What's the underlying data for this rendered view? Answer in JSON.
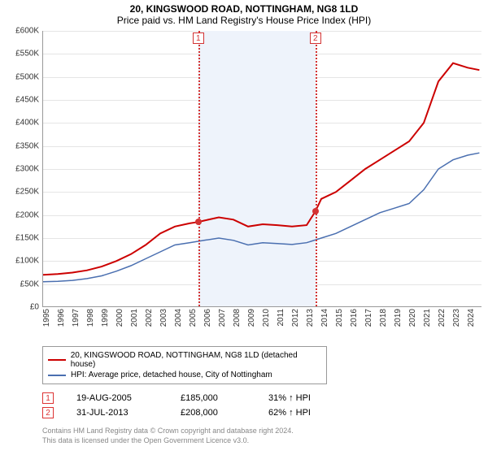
{
  "title": "20, KINGSWOOD ROAD, NOTTINGHAM, NG8 1LD",
  "subtitle": "Price paid vs. HM Land Registry's House Price Index (HPI)",
  "chart": {
    "type": "line",
    "background_color": "#ffffff",
    "grid_color": "#e5e5e5",
    "axis_color": "#999999",
    "ylim": [
      0,
      600000
    ],
    "ytick_step": 50000,
    "y_ticks": [
      "£0",
      "£50K",
      "£100K",
      "£150K",
      "£200K",
      "£250K",
      "£300K",
      "£350K",
      "£400K",
      "£450K",
      "£500K",
      "£550K",
      "£600K"
    ],
    "xlim": [
      1995,
      2025
    ],
    "x_ticks": [
      "1995",
      "1996",
      "1997",
      "1998",
      "1999",
      "2000",
      "2001",
      "2002",
      "2003",
      "2004",
      "2005",
      "2006",
      "2007",
      "2008",
      "2009",
      "2010",
      "2011",
      "2012",
      "2013",
      "2014",
      "2015",
      "2016",
      "2017",
      "2018",
      "2019",
      "2020",
      "2021",
      "2022",
      "2023",
      "2024"
    ],
    "band": {
      "start_year": 2005.6,
      "end_year": 2013.6,
      "color": "#eef3fb"
    },
    "markers": [
      {
        "label": "1",
        "year": 2005.6,
        "price": 185000
      },
      {
        "label": "2",
        "year": 2013.6,
        "price": 208000
      }
    ],
    "marker_line_color": "#d33333",
    "marker_box_border": "#d33333",
    "marker_dot_color": "#d33333",
    "series": [
      {
        "name": "property",
        "label": "20, KINGSWOOD ROAD, NOTTINGHAM, NG8 1LD (detached house)",
        "color": "#cc0000",
        "line_width": 2,
        "points": [
          [
            1995,
            70000
          ],
          [
            1996,
            72000
          ],
          [
            1997,
            75000
          ],
          [
            1998,
            80000
          ],
          [
            1999,
            88000
          ],
          [
            2000,
            100000
          ],
          [
            2001,
            115000
          ],
          [
            2002,
            135000
          ],
          [
            2003,
            160000
          ],
          [
            2004,
            175000
          ],
          [
            2005,
            182000
          ],
          [
            2005.6,
            185000
          ],
          [
            2006,
            188000
          ],
          [
            2007,
            195000
          ],
          [
            2008,
            190000
          ],
          [
            2009,
            175000
          ],
          [
            2010,
            180000
          ],
          [
            2011,
            178000
          ],
          [
            2012,
            175000
          ],
          [
            2013,
            178000
          ],
          [
            2013.6,
            208000
          ],
          [
            2014,
            235000
          ],
          [
            2015,
            250000
          ],
          [
            2016,
            275000
          ],
          [
            2017,
            300000
          ],
          [
            2018,
            320000
          ],
          [
            2019,
            340000
          ],
          [
            2020,
            360000
          ],
          [
            2021,
            400000
          ],
          [
            2022,
            490000
          ],
          [
            2023,
            530000
          ],
          [
            2024,
            520000
          ],
          [
            2024.8,
            515000
          ]
        ]
      },
      {
        "name": "hpi",
        "label": "HPI: Average price, detached house, City of Nottingham",
        "color": "#4a6fb0",
        "line_width": 1.5,
        "points": [
          [
            1995,
            55000
          ],
          [
            1996,
            56000
          ],
          [
            1997,
            58000
          ],
          [
            1998,
            62000
          ],
          [
            1999,
            68000
          ],
          [
            2000,
            78000
          ],
          [
            2001,
            90000
          ],
          [
            2002,
            105000
          ],
          [
            2003,
            120000
          ],
          [
            2004,
            135000
          ],
          [
            2005,
            140000
          ],
          [
            2006,
            145000
          ],
          [
            2007,
            150000
          ],
          [
            2008,
            145000
          ],
          [
            2009,
            135000
          ],
          [
            2010,
            140000
          ],
          [
            2011,
            138000
          ],
          [
            2012,
            136000
          ],
          [
            2013,
            140000
          ],
          [
            2014,
            150000
          ],
          [
            2015,
            160000
          ],
          [
            2016,
            175000
          ],
          [
            2017,
            190000
          ],
          [
            2018,
            205000
          ],
          [
            2019,
            215000
          ],
          [
            2020,
            225000
          ],
          [
            2021,
            255000
          ],
          [
            2022,
            300000
          ],
          [
            2023,
            320000
          ],
          [
            2024,
            330000
          ],
          [
            2024.8,
            335000
          ]
        ]
      }
    ]
  },
  "legend": {
    "items": [
      {
        "color": "#cc0000",
        "label": "20, KINGSWOOD ROAD, NOTTINGHAM, NG8 1LD (detached house)"
      },
      {
        "color": "#4a6fb0",
        "label": "HPI: Average price, detached house, City of Nottingham"
      }
    ]
  },
  "sales": [
    {
      "num": "1",
      "date": "19-AUG-2005",
      "price": "£185,000",
      "hpi": "31% ↑ HPI"
    },
    {
      "num": "2",
      "date": "31-JUL-2013",
      "price": "£208,000",
      "hpi": "62% ↑ HPI"
    }
  ],
  "footnote_line1": "Contains HM Land Registry data © Crown copyright and database right 2024.",
  "footnote_line2": "This data is licensed under the Open Government Licence v3.0."
}
